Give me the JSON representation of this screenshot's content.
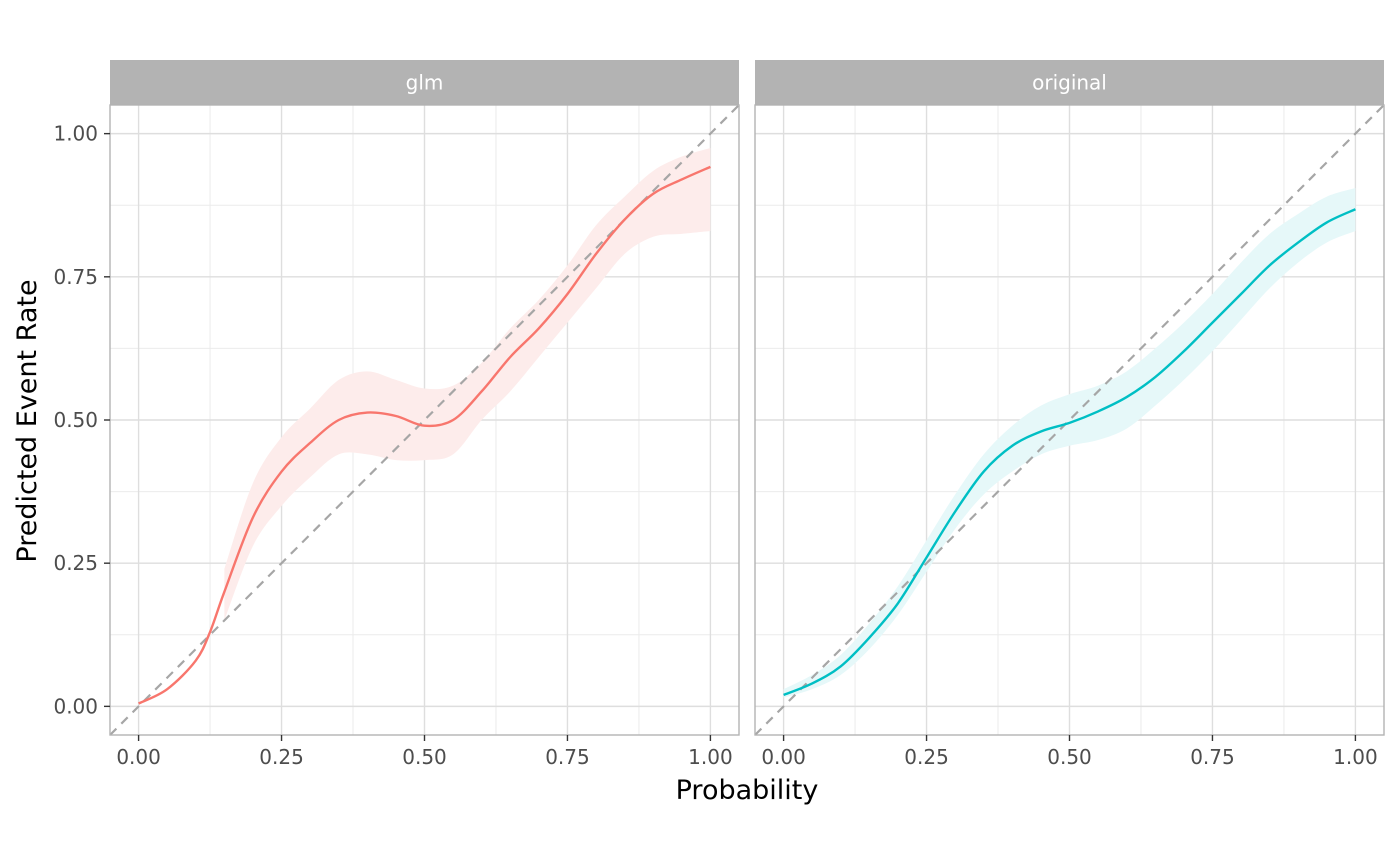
{
  "chart_data": {
    "type": "line",
    "xlabel": "Probability",
    "ylabel": "Predicted Event Rate",
    "xlim": [
      -0.05,
      1.05
    ],
    "ylim": [
      -0.05,
      1.05
    ],
    "x_ticks": [
      "0.00",
      "0.25",
      "0.50",
      "0.75",
      "1.00"
    ],
    "y_ticks": [
      "0.00",
      "0.25",
      "0.50",
      "0.75",
      "1.00"
    ],
    "grid": true,
    "reference_line": {
      "style": "dashed",
      "color": "#a6a6a6",
      "slope": 1,
      "intercept": 0
    },
    "panels": [
      {
        "strip": "glm",
        "color": "#f8766d",
        "ribbon_color": "#fdeceb",
        "series": {
          "x": [
            0.0,
            0.05,
            0.1,
            0.125,
            0.15,
            0.2,
            0.25,
            0.3,
            0.35,
            0.4,
            0.45,
            0.5,
            0.55,
            0.6,
            0.65,
            0.7,
            0.75,
            0.8,
            0.85,
            0.9,
            0.95,
            1.0
          ],
          "y": [
            0.005,
            0.03,
            0.08,
            0.13,
            0.2,
            0.33,
            0.41,
            0.46,
            0.5,
            0.513,
            0.507,
            0.49,
            0.5,
            0.55,
            0.61,
            0.66,
            0.72,
            0.79,
            0.85,
            0.895,
            0.92,
            0.942
          ],
          "lower": [
            null,
            null,
            null,
            null,
            0.15,
            0.28,
            0.35,
            0.4,
            0.44,
            0.44,
            0.43,
            0.43,
            0.44,
            0.5,
            0.55,
            0.61,
            0.67,
            0.73,
            0.79,
            0.82,
            0.825,
            0.83
          ],
          "upper": [
            null,
            null,
            null,
            null,
            0.24,
            0.39,
            0.47,
            0.52,
            0.57,
            0.585,
            0.57,
            0.555,
            0.56,
            0.6,
            0.66,
            0.71,
            0.77,
            0.84,
            0.89,
            0.935,
            0.96,
            0.975
          ]
        }
      },
      {
        "strip": "original",
        "color": "#00bfc4",
        "ribbon_color": "#e6f8f9",
        "series": {
          "x": [
            0.0,
            0.05,
            0.1,
            0.15,
            0.2,
            0.25,
            0.3,
            0.35,
            0.4,
            0.45,
            0.5,
            0.55,
            0.6,
            0.65,
            0.7,
            0.75,
            0.8,
            0.85,
            0.9,
            0.95,
            1.0
          ],
          "y": [
            0.02,
            0.04,
            0.07,
            0.12,
            0.18,
            0.26,
            0.34,
            0.41,
            0.455,
            0.48,
            0.495,
            0.515,
            0.54,
            0.575,
            0.62,
            0.67,
            0.72,
            0.77,
            0.81,
            0.845,
            0.868
          ],
          "lower": [
            0.015,
            0.03,
            0.055,
            0.1,
            0.16,
            0.235,
            0.31,
            0.37,
            0.41,
            0.44,
            0.455,
            0.465,
            0.485,
            0.525,
            0.57,
            0.62,
            0.675,
            0.73,
            0.775,
            0.81,
            0.83
          ],
          "upper": [
            0.03,
            0.055,
            0.09,
            0.145,
            0.21,
            0.29,
            0.37,
            0.44,
            0.49,
            0.525,
            0.545,
            0.56,
            0.585,
            0.625,
            0.67,
            0.72,
            0.775,
            0.825,
            0.86,
            0.89,
            0.905
          ]
        }
      }
    ]
  }
}
